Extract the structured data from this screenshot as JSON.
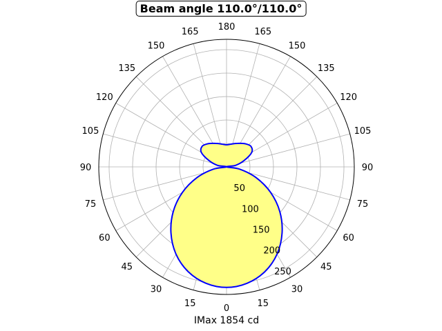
{
  "chart_data": {
    "type": "polar",
    "title": "Beam angle 110.0°/110.0°",
    "xlabel": "IMax 1854 cd",
    "angle_ticks": [
      "0",
      "15",
      "30",
      "45",
      "60",
      "75",
      "90",
      "105",
      "120",
      "135",
      "150",
      "165",
      "180"
    ],
    "radial_ticks": [
      50,
      100,
      150,
      200,
      250
    ],
    "radial_tick_labels": [
      "50",
      "100",
      "150",
      "200",
      "250"
    ],
    "rmax": 272,
    "grid": true,
    "symmetric": true,
    "series": [
      {
        "angles": [
          0,
          10,
          20,
          30,
          40,
          50,
          60,
          70,
          80,
          90,
          100,
          110,
          120,
          130,
          140,
          150,
          160,
          170,
          180
        ],
        "values": [
          257,
          252,
          238,
          215,
          184,
          148,
          108,
          67,
          29,
          0,
          20,
          40,
          62,
          68,
          64,
          58,
          53,
          49,
          47
        ]
      }
    ],
    "colors": {
      "line": "#0000ff",
      "fill": "#ffff88",
      "grid": "#b0b0b0"
    }
  }
}
